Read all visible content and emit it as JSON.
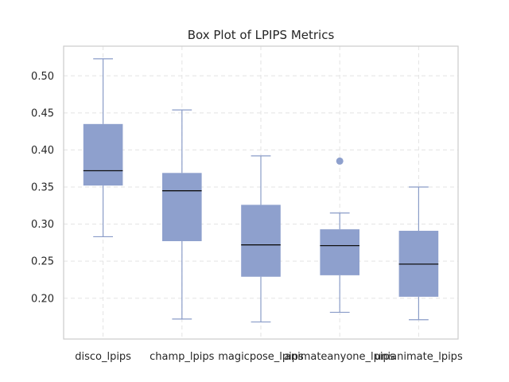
{
  "chart_data": {
    "type": "box",
    "title": "Box Plot of LPIPS Metrics",
    "xlabel": "",
    "ylabel": "",
    "ylim": [
      0.145,
      0.54
    ],
    "yticks": [
      0.2,
      0.25,
      0.3,
      0.35,
      0.4,
      0.45,
      0.5
    ],
    "ytick_labels": [
      "0.20",
      "0.25",
      "0.30",
      "0.35",
      "0.40",
      "0.45",
      "0.50"
    ],
    "grid": true,
    "box_color": "#8ea0cd",
    "median_color": "#111111",
    "categories": [
      "disco_lpips",
      "champ_lpips",
      "magicpose_lpips",
      "animateanyone_lpips",
      "unianimate_lpips"
    ],
    "boxes": [
      {
        "category": "disco_lpips",
        "whisker_low": 0.283,
        "q1": 0.352,
        "median": 0.372,
        "q3": 0.435,
        "whisker_high": 0.523,
        "outliers": []
      },
      {
        "category": "champ_lpips",
        "whisker_low": 0.172,
        "q1": 0.277,
        "median": 0.345,
        "q3": 0.369,
        "whisker_high": 0.454,
        "outliers": []
      },
      {
        "category": "magicpose_lpips",
        "whisker_low": 0.168,
        "q1": 0.229,
        "median": 0.272,
        "q3": 0.326,
        "whisker_high": 0.392,
        "outliers": []
      },
      {
        "category": "animateanyone_lpips",
        "whisker_low": 0.181,
        "q1": 0.231,
        "median": 0.271,
        "q3": 0.293,
        "whisker_high": 0.315,
        "outliers": [
          0.385
        ]
      },
      {
        "category": "unianimate_lpips",
        "whisker_low": 0.171,
        "q1": 0.202,
        "median": 0.246,
        "q3": 0.291,
        "whisker_high": 0.35,
        "outliers": []
      }
    ]
  }
}
